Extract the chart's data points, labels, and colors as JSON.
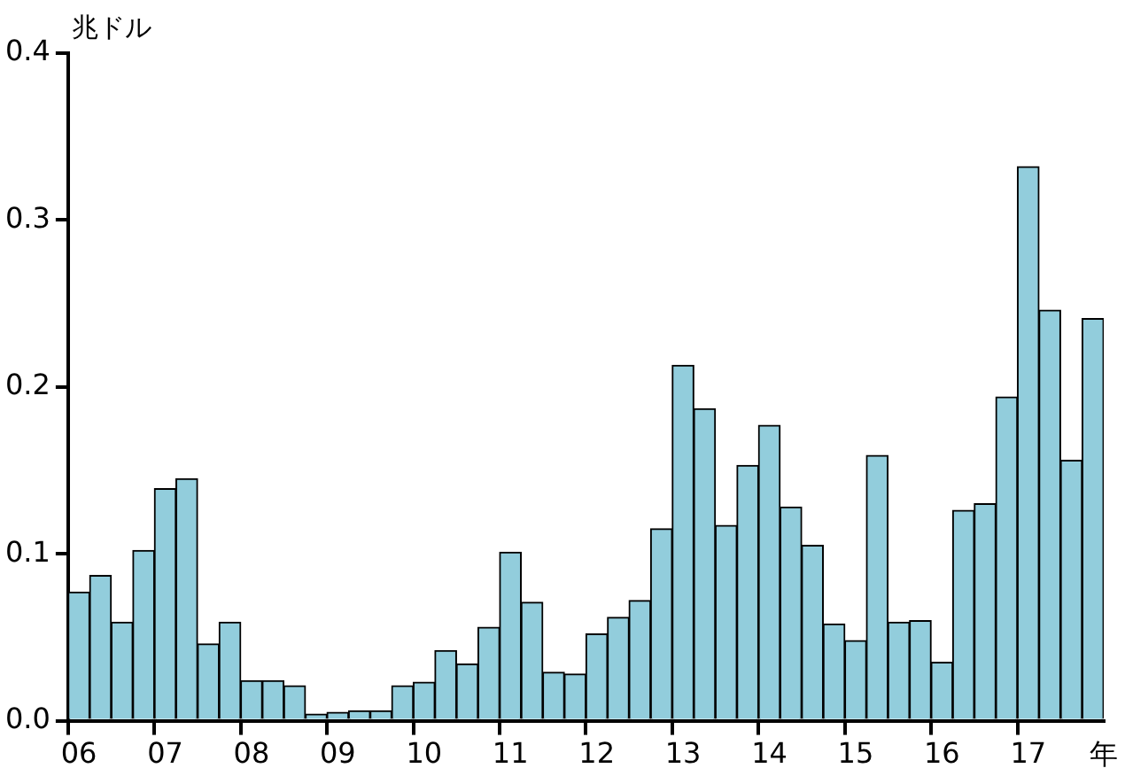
{
  "chart_data": {
    "type": "bar",
    "ylabel": "兆ドル",
    "xlabel": "年",
    "categories": [
      "06",
      null,
      null,
      null,
      "07",
      null,
      null,
      null,
      "08",
      null,
      null,
      null,
      "09",
      null,
      null,
      null,
      "10",
      null,
      null,
      null,
      "11",
      null,
      null,
      null,
      "12",
      null,
      null,
      null,
      "13",
      null,
      null,
      null,
      "14",
      null,
      null,
      null,
      "15",
      null,
      null,
      null,
      "16",
      null,
      null,
      null,
      "17",
      null,
      null,
      null
    ],
    "values": [
      0.077,
      0.087,
      0.059,
      0.102,
      0.139,
      0.145,
      0.046,
      0.059,
      0.024,
      0.024,
      0.021,
      0.004,
      0.005,
      0.006,
      0.006,
      0.021,
      0.023,
      0.042,
      0.034,
      0.056,
      0.101,
      0.071,
      0.029,
      0.028,
      0.052,
      0.062,
      0.072,
      0.115,
      0.213,
      0.187,
      0.117,
      0.153,
      0.177,
      0.128,
      0.105,
      0.058,
      0.048,
      0.159,
      0.059,
      0.06,
      0.035,
      0.126,
      0.13,
      0.194,
      0.332,
      0.246,
      0.156,
      0.241
    ],
    "color": "#92cddc",
    "ylim": [
      0,
      0.4
    ],
    "yticks": [
      {
        "value": 0,
        "label": "0.0"
      },
      0.1,
      0.2,
      0.3,
      0.4
    ],
    "grid": false,
    "legend": false
  }
}
